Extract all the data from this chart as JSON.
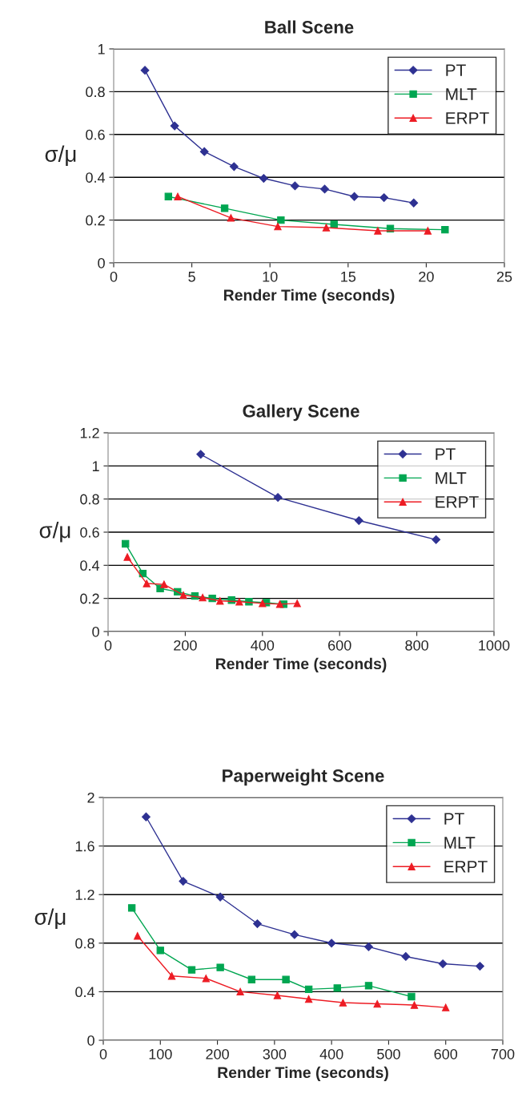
{
  "chart_data": [
    {
      "type": "line",
      "title": "Ball Scene",
      "xlabel": "Render Time (seconds)",
      "ylabel": "σ/μ",
      "xlim": [
        0,
        25
      ],
      "xticks": [
        0,
        5,
        10,
        15,
        20,
        25
      ],
      "ylim": [
        0,
        1
      ],
      "yticks": [
        0,
        0.2,
        0.4,
        0.6,
        0.8,
        1
      ],
      "grid": "y",
      "legend": "top right",
      "series": [
        {
          "name": "PT",
          "color": "#2e3192",
          "marker": "diamond",
          "x": [
            2,
            3.9,
            5.8,
            7.7,
            9.6,
            11.6,
            13.5,
            15.4,
            17.3,
            19.2
          ],
          "values": [
            0.9,
            0.64,
            0.52,
            0.45,
            0.395,
            0.36,
            0.345,
            0.31,
            0.305,
            0.28
          ]
        },
        {
          "name": "MLT",
          "color": "#00a651",
          "marker": "square",
          "x": [
            3.5,
            7.1,
            10.7,
            14.1,
            17.7,
            21.2
          ],
          "values": [
            0.31,
            0.255,
            0.2,
            0.18,
            0.16,
            0.155
          ]
        },
        {
          "name": "ERPT",
          "color": "#ed1c24",
          "marker": "triangle",
          "x": [
            4.1,
            7.5,
            10.5,
            13.6,
            16.9,
            20.1
          ],
          "values": [
            0.31,
            0.21,
            0.17,
            0.165,
            0.15,
            0.15
          ]
        }
      ]
    },
    {
      "type": "line",
      "title": "Gallery Scene",
      "xlabel": "Render Time (seconds)",
      "ylabel": "σ/μ",
      "xlim": [
        0,
        1000
      ],
      "xticks": [
        0,
        200,
        400,
        600,
        800,
        1000
      ],
      "ylim": [
        0,
        1.2
      ],
      "yticks": [
        0,
        0.2,
        0.4,
        0.6,
        0.8,
        1,
        1.2
      ],
      "grid": "y",
      "legend": "top right",
      "series": [
        {
          "name": "PT",
          "color": "#2e3192",
          "marker": "diamond",
          "x": [
            240,
            440,
            650,
            850
          ],
          "values": [
            1.07,
            0.81,
            0.67,
            0.555
          ]
        },
        {
          "name": "MLT",
          "color": "#00a651",
          "marker": "square",
          "x": [
            45,
            90,
            135,
            180,
            225,
            270,
            320,
            365,
            410,
            455
          ],
          "values": [
            0.53,
            0.35,
            0.26,
            0.24,
            0.215,
            0.2,
            0.19,
            0.18,
            0.175,
            0.165
          ]
        },
        {
          "name": "ERPT",
          "color": "#ed1c24",
          "marker": "triangle",
          "x": [
            50,
            100,
            145,
            195,
            245,
            290,
            340,
            400,
            445,
            490
          ],
          "values": [
            0.45,
            0.29,
            0.285,
            0.22,
            0.205,
            0.185,
            0.18,
            0.17,
            0.165,
            0.17
          ]
        }
      ]
    },
    {
      "type": "line",
      "title": "Paperweight Scene",
      "xlabel": "Render Time (seconds)",
      "ylabel": "σ/μ",
      "xlim": [
        0,
        700
      ],
      "xticks": [
        0,
        100,
        200,
        300,
        400,
        500,
        600,
        700
      ],
      "ylim": [
        0,
        2
      ],
      "yticks": [
        0,
        0.4,
        0.8,
        1.2,
        1.6,
        2
      ],
      "grid": "y",
      "legend": "top right",
      "series": [
        {
          "name": "PT",
          "color": "#2e3192",
          "marker": "diamond",
          "x": [
            75,
            140,
            205,
            270,
            335,
            400,
            465,
            530,
            595,
            660
          ],
          "values": [
            1.84,
            1.31,
            1.18,
            0.96,
            0.87,
            0.8,
            0.77,
            0.69,
            0.63,
            0.61
          ]
        },
        {
          "name": "MLT",
          "color": "#00a651",
          "marker": "square",
          "x": [
            50,
            100,
            155,
            205,
            260,
            320,
            360,
            410,
            465,
            540
          ],
          "values": [
            1.09,
            0.74,
            0.58,
            0.6,
            0.5,
            0.5,
            0.42,
            0.43,
            0.45,
            0.36
          ]
        },
        {
          "name": "ERPT",
          "color": "#ed1c24",
          "marker": "triangle",
          "x": [
            60,
            120,
            180,
            240,
            305,
            360,
            420,
            480,
            545,
            600
          ],
          "values": [
            0.86,
            0.53,
            0.51,
            0.4,
            0.37,
            0.34,
            0.31,
            0.3,
            0.29,
            0.27
          ]
        }
      ]
    }
  ]
}
